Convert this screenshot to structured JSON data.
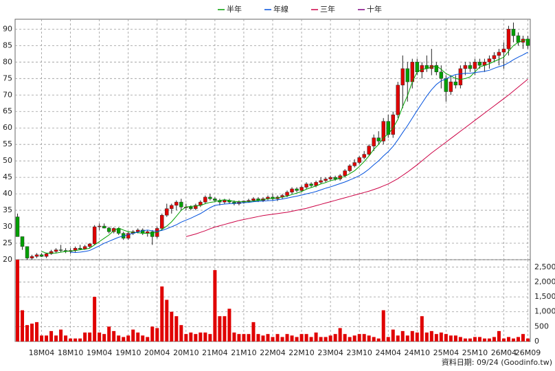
{
  "chart_data": [
    {
      "type": "candlestick",
      "categories": [
        null,
        null,
        null,
        null,
        null,
        "18M04",
        null,
        null,
        null,
        null,
        null,
        "18M10",
        null,
        null,
        null,
        null,
        null,
        "19M04",
        null,
        null,
        null,
        null,
        null,
        "19M10",
        null,
        null,
        null,
        null,
        null,
        "20M04",
        null,
        null,
        null,
        null,
        null,
        "20M10",
        null,
        null,
        null,
        null,
        null,
        "21M04",
        null,
        null,
        null,
        null,
        null,
        "21M10",
        null,
        null,
        null,
        null,
        null,
        "22M04",
        null,
        null,
        null,
        null,
        null,
        "22M10",
        null,
        null,
        null,
        null,
        null,
        "23M04",
        null,
        null,
        null,
        null,
        null,
        "23M10",
        null,
        null,
        null,
        null,
        null,
        "24M04",
        null,
        null,
        null,
        null,
        null,
        "24M10",
        null,
        null,
        null,
        null,
        null,
        "25M04",
        null,
        null,
        null,
        null,
        null,
        "25M10",
        null,
        null,
        null,
        null,
        null,
        "26M04",
        null,
        null,
        null,
        null,
        "26M09"
      ],
      "open": [
        33,
        27,
        24,
        20.5,
        21,
        21.5,
        21,
        21.8,
        22.5,
        23,
        22.8,
        22.5,
        22.8,
        23.5,
        23.2,
        24,
        24.8,
        30,
        30.2,
        29.6,
        28.5,
        29.5,
        28,
        26.5,
        28,
        28.5,
        29,
        28,
        28.5,
        27,
        29.5,
        33.5,
        35.5,
        36.5,
        37.5,
        36,
        36,
        35.5,
        36.5,
        37.5,
        39,
        38.5,
        38,
        37.5,
        38,
        37.5,
        37,
        37.5,
        37.8,
        38,
        38.5,
        38,
        38.5,
        39,
        38.5,
        39,
        39.5,
        40.5,
        41.5,
        41,
        42,
        43,
        42.5,
        43.5,
        44,
        44.5,
        45,
        44.5,
        45.5,
        47,
        48.5,
        49.5,
        51,
        52,
        54.5,
        57,
        56,
        62,
        58,
        64,
        73,
        78,
        74,
        80,
        77,
        79,
        78,
        79,
        77,
        75,
        71,
        74,
        73,
        78,
        79,
        78,
        80,
        79,
        80,
        81,
        82,
        83,
        84,
        90,
        88,
        86,
        87
      ],
      "high": [
        34,
        27,
        24,
        21.5,
        22,
        22,
        22,
        23,
        23.5,
        24.5,
        23.5,
        23.5,
        24,
        24.5,
        24.5,
        25,
        30.5,
        31,
        31,
        30,
        29.8,
        29.8,
        28.5,
        28.5,
        29,
        29.5,
        29.5,
        29,
        29,
        30,
        34,
        37,
        37,
        38,
        38.5,
        37,
        36.5,
        37,
        38,
        39.5,
        40,
        39,
        38.5,
        38.5,
        38.5,
        38,
        38,
        38,
        38.5,
        39,
        39,
        39,
        39.5,
        40,
        39.5,
        40,
        41,
        42,
        42,
        42.5,
        43.5,
        43.5,
        44,
        45,
        45,
        45.5,
        45.5,
        46,
        47.5,
        49,
        50.5,
        51.5,
        53,
        55,
        58,
        59,
        63,
        64,
        65,
        74,
        82,
        80,
        81,
        81,
        80,
        82,
        84,
        80,
        79,
        76,
        76,
        76,
        79,
        80,
        80,
        81,
        81,
        81,
        82,
        83,
        84,
        86,
        91,
        92,
        89,
        88,
        88
      ],
      "low": [
        27,
        23,
        20,
        20,
        20.5,
        20.8,
        20.5,
        21.5,
        22,
        22.3,
        22,
        21.8,
        22.3,
        23,
        23,
        23.5,
        24.5,
        29,
        29.5,
        28,
        28,
        27.5,
        26,
        26,
        27.5,
        28,
        27.5,
        27,
        24.5,
        26.5,
        29,
        33,
        34,
        35,
        35,
        35,
        35,
        35,
        36,
        37,
        38,
        37.5,
        36.5,
        37,
        37,
        36.5,
        36.5,
        37,
        37.3,
        37.5,
        37.5,
        37.5,
        38,
        38,
        37.8,
        38.5,
        39,
        40,
        40.5,
        40.5,
        41.5,
        42,
        42,
        43,
        43.5,
        44,
        44,
        44,
        45,
        46.5,
        48,
        49,
        50.5,
        51.5,
        53,
        55,
        55,
        57,
        57,
        63,
        66,
        68,
        72,
        76,
        75,
        77,
        76,
        76,
        72,
        68,
        70,
        72,
        72,
        76,
        77,
        76,
        78,
        77,
        78,
        80,
        79,
        78,
        82,
        86,
        85,
        84,
        84
      ],
      "close": [
        27,
        24,
        20.5,
        21,
        21.5,
        21,
        21.8,
        22.5,
        23,
        22.8,
        22.5,
        22.8,
        23.5,
        23.2,
        24,
        24.8,
        30,
        30.2,
        29.6,
        28.5,
        29.5,
        28,
        26.5,
        28,
        28.5,
        29,
        28,
        28.5,
        27,
        29.5,
        33.5,
        35.5,
        36.5,
        37.5,
        36,
        36,
        35.5,
        36.5,
        37.5,
        39,
        38.5,
        38,
        37.5,
        38,
        37.5,
        37,
        37.5,
        37.8,
        38,
        38.5,
        38,
        38.5,
        39,
        38.5,
        39,
        39.5,
        40.5,
        41.5,
        41,
        42,
        43,
        42.5,
        43.5,
        44,
        44.5,
        45,
        44.5,
        45.5,
        47,
        48.5,
        49.5,
        51,
        52,
        54.5,
        57,
        56,
        62,
        58,
        64,
        73,
        78,
        74,
        80,
        77,
        79,
        78,
        79,
        77,
        75,
        71,
        74,
        73,
        78,
        79,
        78,
        80,
        79,
        80,
        81,
        82,
        83,
        84,
        90,
        88,
        86,
        87,
        85
      ],
      "up_color": "#e00000",
      "down_color": "#00a000",
      "series": [
        {
          "name": "半年",
          "color": "#00a000",
          "values": [
            null,
            null,
            null,
            null,
            null,
            22.5,
            22,
            22,
            22,
            22.3,
            22.5,
            22.6,
            22.8,
            23,
            23.2,
            23.5,
            24.5,
            25.5,
            26.5,
            27.5,
            28.8,
            29.6,
            29,
            28.5,
            28.3,
            28.2,
            28,
            28,
            28.1,
            28.3,
            29.2,
            30.2,
            31.5,
            33.2,
            35,
            36,
            36.2,
            36.3,
            36.5,
            37,
            37.4,
            37.6,
            38,
            38.2,
            38,
            37.7,
            37.6,
            37.6,
            37.6,
            37.8,
            38,
            38.2,
            38.5,
            38.6,
            38.8,
            39,
            39.3,
            39.8,
            40.2,
            40.7,
            41.4,
            41.9,
            42.4,
            43,
            43.4,
            44,
            44.3,
            44.8,
            45.3,
            46.1,
            47,
            48.3,
            49.8,
            51.5,
            53.5,
            55,
            57,
            58.2,
            60,
            62.6,
            66.5,
            69.8,
            74,
            77,
            77.8,
            78,
            78.5,
            78.8,
            77.8,
            76.5,
            75.8,
            75,
            74.7,
            75,
            75.5,
            77,
            78.5,
            79,
            79.5,
            80.2,
            80.8,
            81.5,
            83.3,
            85,
            86,
            86.5,
            87
          ]
        },
        {
          "name": "年線",
          "color": "#0050dd",
          "values": [
            null,
            null,
            null,
            null,
            null,
            null,
            null,
            null,
            null,
            null,
            null,
            22.3,
            22.2,
            22.3,
            22.5,
            22.8,
            23.5,
            24.2,
            25,
            25.6,
            26.2,
            26.8,
            27.2,
            27.6,
            28,
            28.4,
            28.8,
            29,
            28.8,
            28.6,
            28.9,
            29.4,
            30,
            30.6,
            31.4,
            32,
            32.6,
            33.3,
            34,
            34.9,
            35.8,
            36.5,
            36.7,
            36.9,
            37,
            37.1,
            37.2,
            37.3,
            37.4,
            37.6,
            37.7,
            37.8,
            37.9,
            38,
            38.2,
            38.4,
            38.7,
            39,
            39.3,
            39.6,
            40,
            40.3,
            40.7,
            41.2,
            41.7,
            42.1,
            42.6,
            43.1,
            43.6,
            44.2,
            44.8,
            45.5,
            46.4,
            47.5,
            48.8,
            50,
            51.5,
            52.8,
            54.4,
            56.4,
            58.6,
            60.7,
            63,
            65.3,
            67.5,
            69.7,
            71.6,
            73.2,
            74.3,
            74.9,
            75.7,
            76.2,
            76.4,
            76.6,
            76.6,
            76.8,
            77,
            77.2,
            77.5,
            78.1,
            78.6,
            79,
            79.8,
            80.7,
            81.5,
            82.2,
            83
          ]
        },
        {
          "name": "三年",
          "color": "#cc0044",
          "values": [
            null,
            null,
            null,
            null,
            null,
            null,
            null,
            null,
            null,
            null,
            null,
            null,
            null,
            null,
            null,
            null,
            null,
            null,
            null,
            null,
            null,
            null,
            null,
            null,
            null,
            null,
            null,
            null,
            null,
            null,
            null,
            null,
            null,
            null,
            null,
            27,
            27.4,
            27.8,
            28.3,
            28.8,
            29.4,
            29.9,
            30.3,
            30.7,
            31.1,
            31.5,
            31.9,
            32.2,
            32.5,
            32.8,
            33.1,
            33.4,
            33.6,
            33.8,
            34,
            34.2,
            34.4,
            34.7,
            35,
            35.3,
            35.6,
            36,
            36.4,
            36.8,
            37.2,
            37.6,
            38,
            38.4,
            38.8,
            39.2,
            39.6,
            40,
            40.4,
            40.8,
            41.3,
            41.8,
            42.4,
            43,
            43.8,
            44.6,
            45.6,
            46.6,
            47.7,
            48.8,
            50,
            51.2,
            52.4,
            53.5,
            54.6,
            55.7,
            56.8,
            57.9,
            59,
            60.1,
            61.2,
            62.3,
            63.4,
            64.5,
            65.6,
            66.7,
            67.8,
            68.9,
            70,
            71.2,
            72.4,
            73.6,
            74.8
          ]
        },
        {
          "name": "十年",
          "color": "#800080",
          "values": [
            null,
            null,
            null,
            null,
            null,
            null,
            null,
            null,
            null,
            null,
            null,
            null,
            null,
            null,
            null,
            null,
            null,
            null,
            null,
            null,
            null,
            null,
            null,
            null,
            null,
            null,
            null,
            null,
            null,
            null,
            null,
            null,
            null,
            null,
            null,
            null,
            null,
            null,
            null,
            null,
            null,
            null,
            null,
            null,
            null,
            null,
            null,
            null,
            null,
            null,
            null,
            null,
            null,
            null,
            null,
            null,
            null,
            null,
            null,
            null,
            null,
            null,
            null,
            null,
            null,
            null,
            null,
            null,
            null,
            null,
            null,
            null,
            null,
            null,
            null,
            null,
            null,
            null,
            null,
            null,
            null,
            null,
            null,
            null,
            null,
            null,
            null,
            null,
            null,
            null,
            null,
            null,
            null,
            null,
            null,
            null,
            null,
            null,
            null,
            null,
            null,
            null,
            null,
            null,
            null,
            null,
            null
          ]
        }
      ],
      "ylim": [
        20,
        93
      ],
      "yticks": [
        20,
        25,
        30,
        35,
        40,
        45,
        50,
        55,
        60,
        65,
        70,
        75,
        80,
        85,
        90
      ],
      "grid": true,
      "legend": "top"
    },
    {
      "type": "bar",
      "color": "#e00000",
      "values": [
        2750,
        1050,
        550,
        600,
        650,
        200,
        200,
        350,
        200,
        400,
        200,
        100,
        100,
        100,
        300,
        300,
        1500,
        300,
        250,
        500,
        350,
        200,
        150,
        200,
        400,
        300,
        200,
        150,
        500,
        450,
        1850,
        1400,
        1000,
        850,
        550,
        250,
        300,
        250,
        300,
        300,
        250,
        2400,
        850,
        850,
        1100,
        300,
        250,
        250,
        250,
        650,
        250,
        200,
        250,
        150,
        250,
        150,
        250,
        200,
        150,
        250,
        250,
        150,
        300,
        150,
        150,
        200,
        250,
        450,
        250,
        150,
        200,
        250,
        250,
        200,
        150,
        100,
        1050,
        150,
        400,
        200,
        350,
        200,
        350,
        300,
        850,
        300,
        350,
        250,
        300,
        250,
        200,
        200,
        150,
        100,
        100,
        150,
        150,
        100,
        100,
        150,
        350,
        100,
        150,
        100,
        150,
        250,
        100
      ],
      "ylim": [
        0,
        2750
      ],
      "yticks": [
        0,
        500,
        {
          "value": 1000,
          "label": "1,000"
        },
        {
          "value": 1500,
          "label": "1,500"
        },
        {
          "value": 2000,
          "label": "2,000"
        },
        {
          "value": 2500,
          "label": "2,500"
        }
      ],
      "grid": true
    }
  ],
  "source": "資料日期: 09/24  (Goodinfo.tw)"
}
